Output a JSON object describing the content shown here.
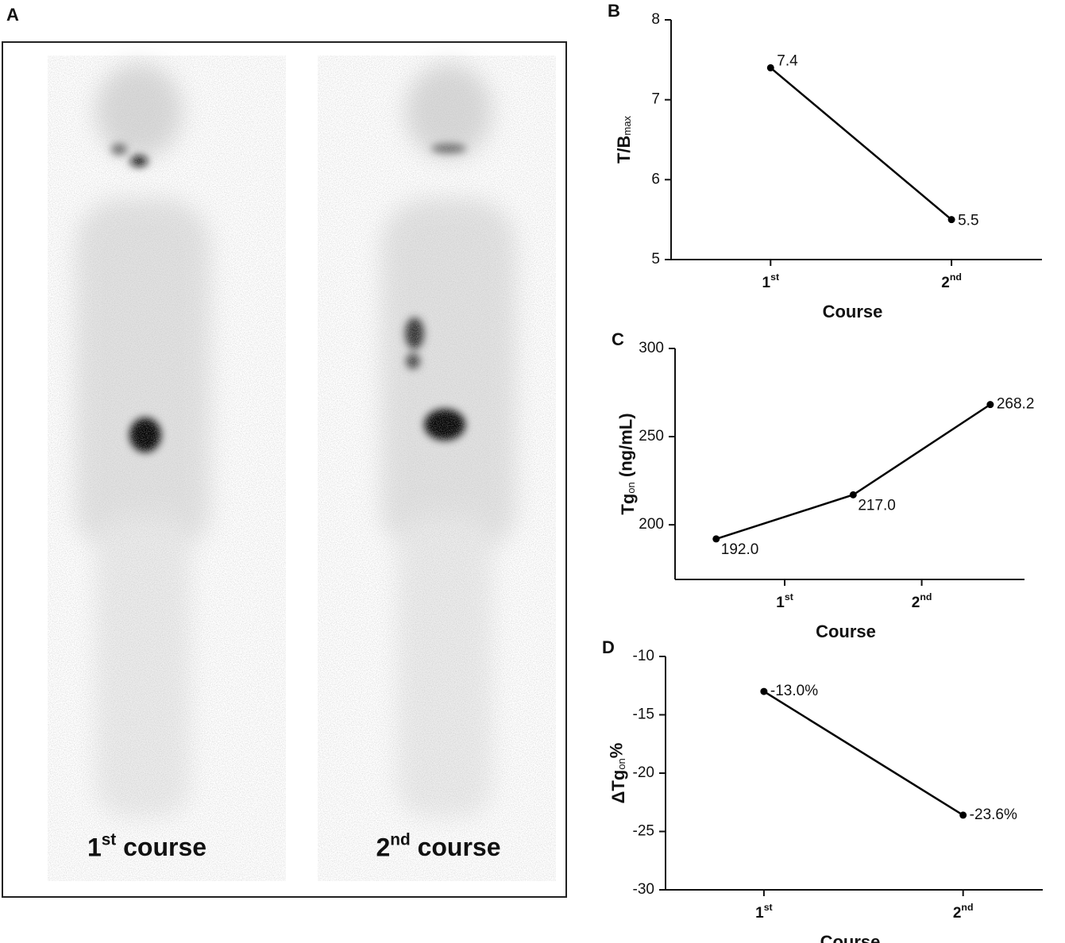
{
  "panel_a": {
    "label": "A",
    "captions": [
      "1st course",
      "2nd course"
    ]
  },
  "chart_data": [
    {
      "type": "line",
      "label": "B",
      "ylabel": "T/B",
      "ylabel_sub": "max",
      "xlabel": "Course",
      "color": "#000000",
      "x": [
        1,
        2
      ],
      "values": [
        7.4,
        5.5
      ],
      "value_labels": [
        "7.4",
        "5.5"
      ],
      "xlim": [
        0.45,
        2.5
      ],
      "xticks": [
        {
          "value": 1,
          "label": "1st"
        },
        {
          "value": 2,
          "label": "2nd"
        }
      ],
      "ylim": [
        5,
        8
      ],
      "yticks": [
        5,
        6,
        7,
        8
      ]
    },
    {
      "type": "line",
      "label": "C",
      "ylabel": "Tg",
      "ylabel_sub": "on",
      "ylabel_tail": " (ng/mL)",
      "xlabel": "Course",
      "color": "#000000",
      "x": [
        0.5,
        1.5,
        2.5
      ],
      "values": [
        192.0,
        217.0,
        268.2
      ],
      "value_labels": [
        "192.0",
        "217.0",
        "268.2"
      ],
      "xlim": [
        0.2,
        2.75
      ],
      "xticks": [
        {
          "value": 1,
          "label": "1st"
        },
        {
          "value": 2,
          "label": "2nd"
        }
      ],
      "ylim": [
        169,
        300
      ],
      "yticks": [
        200,
        250,
        300
      ]
    },
    {
      "type": "line",
      "label": "D",
      "ylabel": "ΔTg",
      "ylabel_sub": "on",
      "ylabel_tail": "%",
      "xlabel": "Course",
      "color": "#000000",
      "x": [
        1,
        2
      ],
      "values": [
        -13.0,
        -23.6
      ],
      "value_labels": [
        "-13.0%",
        "-23.6%"
      ],
      "xlim": [
        0.506,
        2.4
      ],
      "xticks": [
        {
          "value": 1,
          "label": "1st"
        },
        {
          "value": 2,
          "label": "2nd"
        }
      ],
      "ylim": [
        -30,
        -10
      ],
      "yticks": [
        -30,
        -25,
        -20,
        -15,
        -10
      ]
    }
  ]
}
